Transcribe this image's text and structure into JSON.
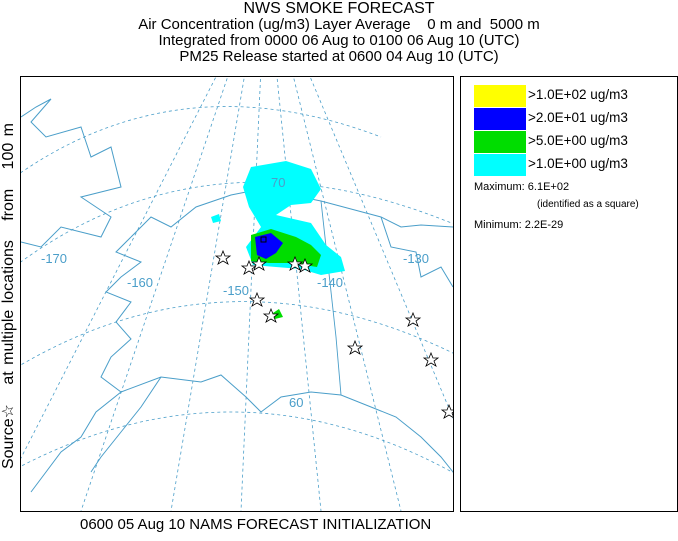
{
  "title": {
    "line1": "NWS SMOKE FORECAST",
    "line2": "Air Concentration (ug/m3) Layer Average    0 m and  5000 m",
    "line3": "Integrated from 0000 06 Aug to 0100 06 Aug 10 (UTC)",
    "line4": "PM25 Release started at 0600 04 Aug 10 (UTC)"
  },
  "side_label": "Source☆   at multiple locations   from   100 m",
  "map": {
    "lon_labels": [
      "-170",
      "-160",
      "-150",
      "-140",
      "-130"
    ],
    "lat_labels": [
      "70",
      "60"
    ],
    "graticule_color": "#4a9ec9",
    "coast_color": "#4a9ec9",
    "source_marker": "star-icon",
    "max_marker": "square-icon"
  },
  "legend": {
    "items": [
      {
        "label": ">1.0E+02 ug/m3",
        "color": "#ffff00"
      },
      {
        "label": ">2.0E+01 ug/m3",
        "color": "#0000ff"
      },
      {
        "label": ">5.0E+00 ug/m3",
        "color": "#00dd00"
      },
      {
        "label": ">1.0E+00 ug/m3",
        "color": "#00ffff"
      }
    ],
    "maximum": "Maximum: 6.1E+02",
    "maximum_note": "(identified as a square)",
    "minimum": "Minimum: 2.2E-29"
  },
  "footer": "0600 05 Aug 10 NAMS FORECAST INITIALIZATION"
}
